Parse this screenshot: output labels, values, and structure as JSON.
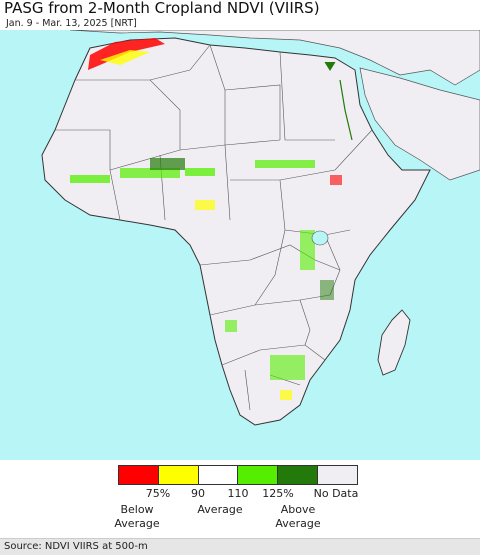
{
  "header": {
    "title": "PASG from 2-Month Cropland NDVI (VIIRS)",
    "subtitle": "Jan. 9 - Mar. 13, 2025 [NRT]"
  },
  "map": {
    "region": "Africa",
    "ocean_color": "#b7f5f7",
    "land_color": "#f0eef2",
    "border_color": "#555555"
  },
  "legend": {
    "colors": [
      "#ff0000",
      "#ffff00",
      "#ffffff",
      "#55ee00",
      "#237a0a",
      "#f0eef2"
    ],
    "ticks": [
      "75%",
      "90",
      "110",
      "125%",
      "No Data"
    ],
    "categories": [
      {
        "line1": "Below",
        "line2": "Average"
      },
      {
        "line1": "Average",
        "line2": ""
      },
      {
        "line1": "Above",
        "line2": "Average"
      }
    ]
  },
  "footer": {
    "source": "Source: NDVI VIIRS at 500-m"
  }
}
